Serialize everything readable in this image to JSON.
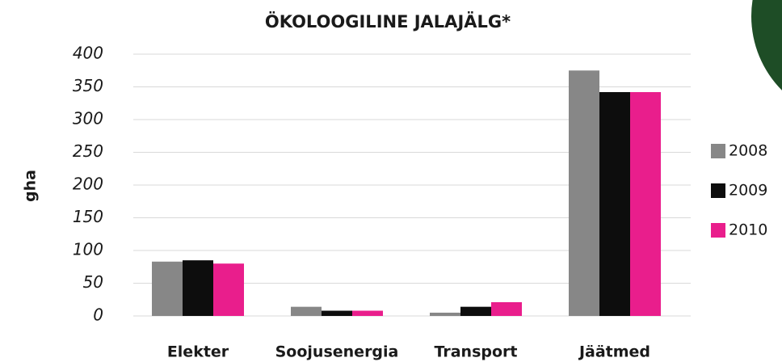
{
  "chart_data": {
    "type": "bar",
    "title": "ÖKOLOOGILINE JALAJÄLG*",
    "y_label": "gha",
    "categories": [
      "Elekter",
      "Soojusenergia",
      "Transport",
      "Jäätmed"
    ],
    "series": [
      {
        "name": "2008",
        "color": "#878787",
        "values": [
          83,
          14,
          5,
          375
        ]
      },
      {
        "name": "2009",
        "color": "#0d0d0d",
        "values": [
          85,
          8,
          14,
          342
        ]
      },
      {
        "name": "2010",
        "color": "#e91e8c",
        "values": [
          80,
          8,
          21,
          342
        ]
      }
    ],
    "ylim": [
      0,
      400
    ],
    "yticks": [
      0,
      50,
      100,
      150,
      200,
      250,
      300,
      350,
      400
    ],
    "grid": true,
    "legend": "right"
  }
}
